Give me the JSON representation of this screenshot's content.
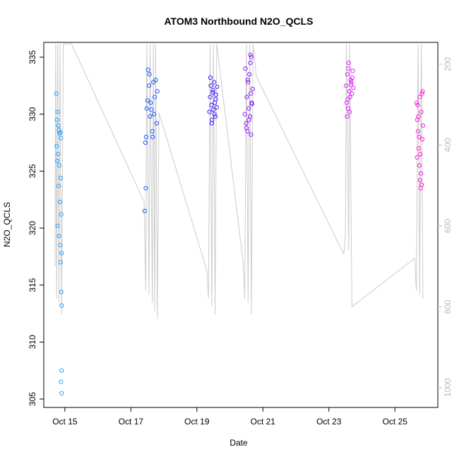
{
  "chart_data": {
    "type": "scatter",
    "title": "ATOM3 Northbound N2O_QCLS",
    "x_label": "Date",
    "y_label": "N2O_QCLS",
    "xlim": [
      14.36,
      26.3
    ],
    "xticks": [
      {
        "value": 15,
        "label": "Oct 15"
      },
      {
        "value": 17,
        "label": "Oct 17"
      },
      {
        "value": 19,
        "label": "Oct 19"
      },
      {
        "value": 21,
        "label": "Oct 21"
      },
      {
        "value": 23,
        "label": "Oct 23"
      },
      {
        "value": 25,
        "label": "Oct 25"
      }
    ],
    "ylim": [
      304.26,
      336.3
    ],
    "yticks": [
      305,
      310,
      315,
      320,
      325,
      330,
      335
    ],
    "y2lim": [
      1049,
      146
    ],
    "y2ticks": [
      200,
      400,
      600,
      800,
      1000
    ],
    "y2_color": "#bbbbbb",
    "series": [
      {
        "type": "line",
        "axis": "y2",
        "color": "#cccccc",
        "x": [
          14.7,
          14.72,
          14.75,
          14.78,
          14.82,
          14.85,
          14.9,
          14.95,
          15.2,
          17.4,
          17.45,
          17.48,
          17.55,
          17.58,
          17.65,
          17.68,
          17.72,
          17.75,
          17.8,
          17.85,
          19.3,
          19.35,
          19.4,
          19.45,
          19.5,
          19.55,
          19.6,
          20.4,
          20.45,
          20.5,
          20.55,
          20.6,
          20.65,
          20.7,
          20.8,
          23.45,
          23.5,
          23.53,
          23.6,
          23.63,
          23.68,
          23.7,
          25.6,
          25.65,
          25.7,
          25.75,
          25.8,
          25.85
        ],
        "values": [
          700,
          150,
          780,
          150,
          790,
          150,
          820,
          150,
          150,
          540,
          760,
          150,
          770,
          150,
          790,
          150,
          810,
          150,
          830,
          320,
          710,
          780,
          150,
          800,
          150,
          820,
          150,
          690,
          780,
          150,
          790,
          150,
          820,
          150,
          230,
          670,
          620,
          150,
          660,
          150,
          660,
          800,
          680,
          760,
          150,
          770,
          150,
          780
        ]
      },
      {
        "color": "#1fa0ff",
        "x": [
          14.74,
          14.76,
          14.78,
          14.8,
          14.82,
          14.84,
          14.86,
          14.88,
          14.75,
          14.79,
          14.83,
          14.87,
          14.77,
          14.81,
          14.85,
          14.89,
          14.78,
          14.82,
          14.86,
          14.9,
          14.87,
          14.89,
          14.9,
          14.9,
          14.88,
          14.9
        ],
        "values": [
          331.8,
          329.5,
          330.2,
          329.0,
          328.6,
          328.3,
          328.4,
          327.9,
          327.2,
          326.5,
          325.5,
          324.4,
          325.9,
          323.7,
          322.3,
          321.2,
          320.2,
          319.3,
          318.5,
          317.8,
          317.0,
          314.4,
          313.2,
          307.5,
          306.5,
          305.5
        ]
      },
      {
        "color": "#1a55ff",
        "x": [
          17.42,
          17.45,
          17.48,
          17.5,
          17.52,
          17.55,
          17.58,
          17.6,
          17.62,
          17.65,
          17.68,
          17.7,
          17.72,
          17.75,
          17.78,
          17.8,
          17.44,
          17.46,
          17.56,
          17.66
        ],
        "values": [
          321.5,
          323.5,
          330.5,
          331.2,
          333.9,
          332.5,
          329.8,
          331.0,
          330.4,
          328.5,
          332.8,
          330.0,
          331.5,
          333.0,
          329.2,
          332.0,
          327.5,
          328.0,
          333.5,
          328.0
        ]
      },
      {
        "color": "#3d1aff",
        "x": [
          19.38,
          19.4,
          19.42,
          19.44,
          19.46,
          19.48,
          19.5,
          19.52,
          19.54,
          19.56,
          19.58,
          19.6,
          19.41,
          19.45,
          19.49,
          19.53,
          19.57,
          19.61
        ],
        "values": [
          330.2,
          331.5,
          332.5,
          330.8,
          329.5,
          331.9,
          330.4,
          332.8,
          331.0,
          329.8,
          331.7,
          330.6,
          333.2,
          329.2,
          332.1,
          330.0,
          331.3,
          332.4
        ]
      },
      {
        "color": "#8c1aff",
        "x": [
          20.45,
          20.47,
          20.49,
          20.51,
          20.53,
          20.55,
          20.57,
          20.59,
          20.61,
          20.63,
          20.65,
          20.67,
          20.69,
          20.5,
          20.54,
          20.58,
          20.62,
          20.66,
          20.62,
          20.64
        ],
        "values": [
          330.0,
          334.0,
          329.2,
          331.5,
          328.5,
          332.8,
          330.5,
          333.5,
          329.8,
          331.8,
          335.0,
          330.9,
          332.2,
          328.8,
          333.0,
          329.5,
          334.5,
          331.0,
          335.2,
          328.2
        ]
      },
      {
        "color": "#e41aff",
        "x": [
          23.52,
          23.54,
          23.56,
          23.58,
          23.6,
          23.62,
          23.64,
          23.66,
          23.68,
          23.7,
          23.72,
          23.74,
          23.55,
          23.59,
          23.63,
          23.67,
          23.71,
          23.57
        ],
        "values": [
          332.5,
          331.0,
          333.5,
          330.5,
          334.5,
          332.0,
          331.5,
          333.0,
          332.8,
          331.8,
          333.8,
          332.3,
          329.8,
          334.0,
          330.2,
          332.6,
          333.2,
          331.3
        ]
      },
      {
        "color": "#ff1ad2",
        "x": [
          25.66,
          25.68,
          25.7,
          25.72,
          25.74,
          25.76,
          25.78,
          25.8,
          25.82,
          25.84,
          25.67,
          25.71,
          25.75,
          25.79,
          25.83,
          25.69,
          25.73,
          25.77,
          25.81,
          25.85
        ],
        "values": [
          331.0,
          329.5,
          328.5,
          327.0,
          325.5,
          324.2,
          323.5,
          330.2,
          331.8,
          332.0,
          326.2,
          329.8,
          331.5,
          324.8,
          327.8,
          330.8,
          328.0,
          326.5,
          323.8,
          329.0
        ]
      }
    ]
  }
}
